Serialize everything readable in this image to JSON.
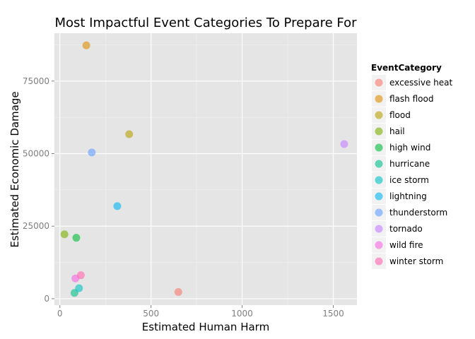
{
  "chart_data": {
    "type": "scatter",
    "title": "Most Impactful Event Categories To Prepare For",
    "xlabel": "Estimated Human Harm",
    "ylabel": "Estimated Economic Damage",
    "xlim": [
      -30,
      1630
    ],
    "ylim": [
      -2200,
      91500
    ],
    "xticks": [
      0,
      500,
      1000,
      1500
    ],
    "yticks": [
      0,
      25000,
      50000,
      75000
    ],
    "grid": true,
    "legend": {
      "title": "EventCategory",
      "position": "right"
    },
    "points": [
      {
        "category": "excessive heat",
        "x": 650,
        "y": 2300,
        "color": "#F8766D"
      },
      {
        "category": "flash flood",
        "x": 145,
        "y": 87300,
        "color": "#DE8C00"
      },
      {
        "category": "flood",
        "x": 380,
        "y": 56700,
        "color": "#B79F00"
      },
      {
        "category": "hail",
        "x": 25,
        "y": 22200,
        "color": "#7CAE00"
      },
      {
        "category": "high wind",
        "x": 90,
        "y": 21000,
        "color": "#00BA38"
      },
      {
        "category": "hurricane",
        "x": 80,
        "y": 2000,
        "color": "#00C08B"
      },
      {
        "category": "ice storm",
        "x": 105,
        "y": 3600,
        "color": "#00BFC4"
      },
      {
        "category": "lightning",
        "x": 315,
        "y": 31900,
        "color": "#00B4F0"
      },
      {
        "category": "thunderstorm",
        "x": 175,
        "y": 50400,
        "color": "#619CFF"
      },
      {
        "category": "tornado",
        "x": 1560,
        "y": 53300,
        "color": "#C77CFF"
      },
      {
        "category": "wild fire",
        "x": 85,
        "y": 7000,
        "color": "#F564E3"
      },
      {
        "category": "winter storm",
        "x": 115,
        "y": 8100,
        "color": "#FF64B0"
      }
    ]
  }
}
